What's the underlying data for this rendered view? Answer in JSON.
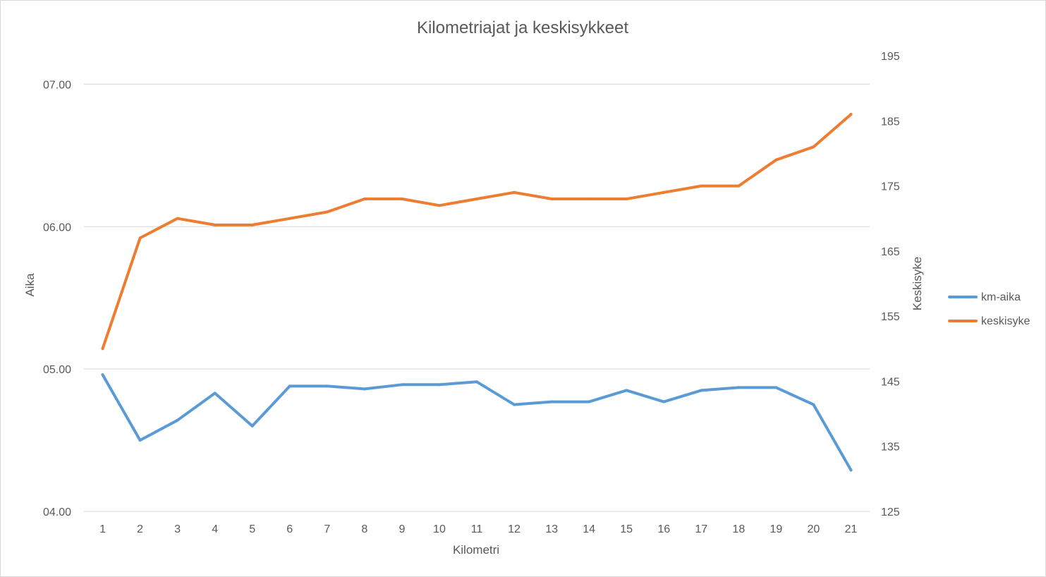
{
  "chart_data": {
    "type": "line",
    "title": "Kilometriajat ja keskisykkeet",
    "xlabel": "Kilometri",
    "ylabel_left": "Aika",
    "ylabel_right": "Keskisyke",
    "categories": [
      "1",
      "2",
      "3",
      "4",
      "5",
      "6",
      "7",
      "8",
      "9",
      "10",
      "11",
      "12",
      "13",
      "14",
      "15",
      "16",
      "17",
      "18",
      "19",
      "20",
      "21"
    ],
    "y_left": {
      "min": 4.0,
      "max": 7.2,
      "ticks": [
        4.0,
        5.0,
        6.0,
        7.0
      ],
      "tick_labels": [
        "04.00",
        "05.00",
        "06.00",
        "07.00"
      ],
      "format": "mm.ss"
    },
    "y_right": {
      "min": 125,
      "max": 195,
      "ticks": [
        125,
        135,
        145,
        155,
        165,
        175,
        185,
        195
      ],
      "tick_labels": [
        "125",
        "135",
        "145",
        "155",
        "165",
        "175",
        "185",
        "195"
      ]
    },
    "grid": true,
    "legend_position": "right",
    "series": [
      {
        "name": "km-aika",
        "axis": "left",
        "color": "#5b9bd5",
        "values": [
          4.96,
          4.5,
          4.64,
          4.83,
          4.6,
          4.88,
          4.88,
          4.86,
          4.89,
          4.89,
          4.91,
          4.75,
          4.77,
          4.77,
          4.85,
          4.77,
          4.85,
          4.87,
          4.87,
          4.75,
          4.29
        ]
      },
      {
        "name": "keskisyke",
        "axis": "right",
        "color": "#ed7d31",
        "values": [
          150,
          167,
          170,
          169,
          169,
          170,
          171,
          173,
          173,
          172,
          173,
          174,
          173,
          173,
          173,
          174,
          175,
          175,
          179,
          181,
          186
        ]
      }
    ]
  }
}
